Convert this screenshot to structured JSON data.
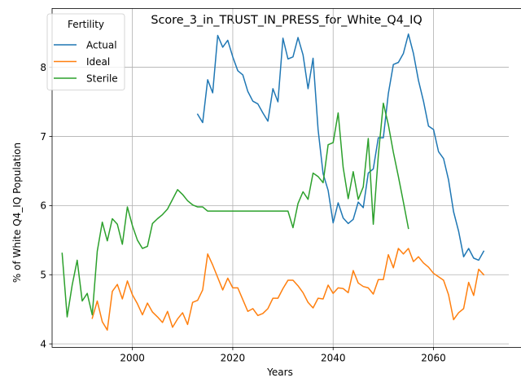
{
  "chart_data": {
    "type": "line",
    "title": "Score_3_in_TRUST_IN_PRESS_for_White_Q4_IQ",
    "xlabel": "Years",
    "ylabel": "% of White Q4_IQ Population",
    "xlim": [
      1984,
      2075
    ],
    "ylim": [
      3.95,
      8.85
    ],
    "xticks": [
      2000,
      2020,
      2040,
      2060
    ],
    "yticks": [
      4,
      5,
      6,
      7,
      8
    ],
    "grid": true,
    "legend": {
      "title": "Fertility",
      "placement": "top-left"
    },
    "series": [
      {
        "name": "Actual",
        "color": "#1f77b4",
        "points": [
          [
            2013,
            7.32
          ],
          [
            2014,
            7.2
          ],
          [
            2015,
            7.82
          ],
          [
            2016,
            7.63
          ],
          [
            2017,
            8.46
          ],
          [
            2018,
            8.29
          ],
          [
            2019,
            8.39
          ],
          [
            2020,
            8.15
          ],
          [
            2021,
            7.95
          ],
          [
            2022,
            7.89
          ],
          [
            2023,
            7.65
          ],
          [
            2024,
            7.51
          ],
          [
            2025,
            7.47
          ],
          [
            2026,
            7.34
          ],
          [
            2027,
            7.22
          ],
          [
            2028,
            7.69
          ],
          [
            2029,
            7.5
          ],
          [
            2030,
            8.42
          ],
          [
            2031,
            8.12
          ],
          [
            2032,
            8.15
          ],
          [
            2033,
            8.43
          ],
          [
            2034,
            8.18
          ],
          [
            2035,
            7.69
          ],
          [
            2036,
            8.13
          ],
          [
            2037,
            7.1
          ],
          [
            2038,
            6.46
          ],
          [
            2039,
            6.22
          ],
          [
            2040,
            5.75
          ],
          [
            2041,
            6.04
          ],
          [
            2042,
            5.82
          ],
          [
            2043,
            5.74
          ],
          [
            2044,
            5.8
          ],
          [
            2045,
            6.05
          ],
          [
            2046,
            5.97
          ],
          [
            2047,
            6.47
          ],
          [
            2048,
            6.53
          ],
          [
            2049,
            6.98
          ],
          [
            2050,
            6.98
          ],
          [
            2051,
            7.62
          ],
          [
            2052,
            8.04
          ],
          [
            2053,
            8.07
          ],
          [
            2054,
            8.2
          ],
          [
            2055,
            8.48
          ],
          [
            2056,
            8.2
          ],
          [
            2057,
            7.81
          ],
          [
            2058,
            7.51
          ],
          [
            2059,
            7.15
          ],
          [
            2060,
            7.1
          ],
          [
            2061,
            6.78
          ],
          [
            2062,
            6.68
          ],
          [
            2063,
            6.37
          ],
          [
            2064,
            5.91
          ],
          [
            2065,
            5.63
          ],
          [
            2066,
            5.26
          ],
          [
            2067,
            5.38
          ],
          [
            2068,
            5.24
          ],
          [
            2069,
            5.21
          ],
          [
            2070,
            5.34
          ]
        ]
      },
      {
        "name": "Ideal",
        "color": "#ff7f0e",
        "points": [
          [
            1992,
            4.37
          ],
          [
            1993,
            4.62
          ],
          [
            1994,
            4.32
          ],
          [
            1995,
            4.2
          ],
          [
            1996,
            4.76
          ],
          [
            1997,
            4.86
          ],
          [
            1998,
            4.65
          ],
          [
            1999,
            4.91
          ],
          [
            2000,
            4.71
          ],
          [
            2001,
            4.58
          ],
          [
            2002,
            4.42
          ],
          [
            2003,
            4.59
          ],
          [
            2004,
            4.46
          ],
          [
            2005,
            4.39
          ],
          [
            2006,
            4.31
          ],
          [
            2007,
            4.47
          ],
          [
            2008,
            4.24
          ],
          [
            2009,
            4.36
          ],
          [
            2010,
            4.45
          ],
          [
            2011,
            4.28
          ],
          [
            2012,
            4.6
          ],
          [
            2013,
            4.63
          ],
          [
            2014,
            4.78
          ],
          [
            2015,
            5.3
          ],
          [
            2016,
            5.14
          ],
          [
            2017,
            4.96
          ],
          [
            2018,
            4.78
          ],
          [
            2019,
            4.95
          ],
          [
            2020,
            4.81
          ],
          [
            2021,
            4.81
          ],
          [
            2022,
            4.64
          ],
          [
            2023,
            4.47
          ],
          [
            2024,
            4.51
          ],
          [
            2025,
            4.41
          ],
          [
            2026,
            4.44
          ],
          [
            2027,
            4.51
          ],
          [
            2028,
            4.66
          ],
          [
            2029,
            4.66
          ],
          [
            2030,
            4.8
          ],
          [
            2031,
            4.92
          ],
          [
            2032,
            4.92
          ],
          [
            2033,
            4.84
          ],
          [
            2034,
            4.74
          ],
          [
            2035,
            4.6
          ],
          [
            2036,
            4.52
          ],
          [
            2037,
            4.66
          ],
          [
            2038,
            4.65
          ],
          [
            2039,
            4.85
          ],
          [
            2040,
            4.73
          ],
          [
            2041,
            4.81
          ],
          [
            2042,
            4.8
          ],
          [
            2043,
            4.74
          ],
          [
            2044,
            5.06
          ],
          [
            2045,
            4.88
          ],
          [
            2046,
            4.83
          ],
          [
            2047,
            4.81
          ],
          [
            2048,
            4.72
          ],
          [
            2049,
            4.93
          ],
          [
            2050,
            4.93
          ],
          [
            2051,
            5.29
          ],
          [
            2052,
            5.1
          ],
          [
            2053,
            5.38
          ],
          [
            2054,
            5.3
          ],
          [
            2055,
            5.38
          ],
          [
            2056,
            5.19
          ],
          [
            2057,
            5.26
          ],
          [
            2058,
            5.17
          ],
          [
            2059,
            5.11
          ],
          [
            2060,
            5.02
          ],
          [
            2061,
            4.97
          ],
          [
            2062,
            4.92
          ],
          [
            2063,
            4.71
          ],
          [
            2064,
            4.35
          ],
          [
            2065,
            4.45
          ],
          [
            2066,
            4.51
          ],
          [
            2067,
            4.89
          ],
          [
            2068,
            4.7
          ],
          [
            2069,
            5.08
          ],
          [
            2070,
            5.0
          ]
        ]
      },
      {
        "name": "Sterile",
        "color": "#2ca02c",
        "points": [
          [
            1986,
            5.31
          ],
          [
            1987,
            4.39
          ],
          [
            1988,
            4.85
          ],
          [
            1989,
            5.21
          ],
          [
            1990,
            4.62
          ],
          [
            1991,
            4.73
          ],
          [
            1992,
            4.42
          ],
          [
            1993,
            5.34
          ],
          [
            1994,
            5.76
          ],
          [
            1995,
            5.49
          ],
          [
            1996,
            5.81
          ],
          [
            1997,
            5.73
          ],
          [
            1998,
            5.44
          ],
          [
            1999,
            5.98
          ],
          [
            2000,
            5.71
          ],
          [
            2001,
            5.5
          ],
          [
            2002,
            5.38
          ],
          [
            2003,
            5.41
          ],
          [
            2004,
            5.74
          ],
          [
            2005,
            5.81
          ],
          [
            2006,
            5.87
          ],
          [
            2007,
            5.95
          ],
          [
            2008,
            6.09
          ],
          [
            2009,
            6.23
          ],
          [
            2010,
            6.16
          ],
          [
            2011,
            6.07
          ],
          [
            2012,
            6.01
          ],
          [
            2013,
            5.98
          ],
          [
            2014,
            5.98
          ],
          [
            2015,
            5.92
          ],
          [
            2016,
            5.92
          ],
          [
            2017,
            5.92
          ],
          [
            2018,
            5.92
          ],
          [
            2019,
            5.92
          ],
          [
            2020,
            5.92
          ],
          [
            2021,
            5.92
          ],
          [
            2022,
            5.92
          ],
          [
            2023,
            5.92
          ],
          [
            2024,
            5.92
          ],
          [
            2025,
            5.92
          ],
          [
            2026,
            5.92
          ],
          [
            2027,
            5.92
          ],
          [
            2028,
            5.92
          ],
          [
            2029,
            5.92
          ],
          [
            2030,
            5.92
          ],
          [
            2031,
            5.92
          ],
          [
            2032,
            5.68
          ],
          [
            2033,
            6.03
          ],
          [
            2034,
            6.2
          ],
          [
            2035,
            6.09
          ],
          [
            2036,
            6.47
          ],
          [
            2037,
            6.42
          ],
          [
            2038,
            6.33
          ],
          [
            2039,
            6.88
          ],
          [
            2040,
            6.91
          ],
          [
            2041,
            7.34
          ],
          [
            2042,
            6.55
          ],
          [
            2043,
            6.1
          ],
          [
            2044,
            6.49
          ],
          [
            2045,
            6.09
          ],
          [
            2046,
            6.27
          ],
          [
            2047,
            6.97
          ],
          [
            2048,
            5.73
          ],
          [
            2049,
            6.72
          ],
          [
            2050,
            7.48
          ],
          [
            2051,
            7.17
          ],
          [
            2052,
            6.77
          ],
          [
            2053,
            6.42
          ],
          [
            2054,
            6.05
          ],
          [
            2055,
            5.67
          ]
        ]
      }
    ]
  }
}
